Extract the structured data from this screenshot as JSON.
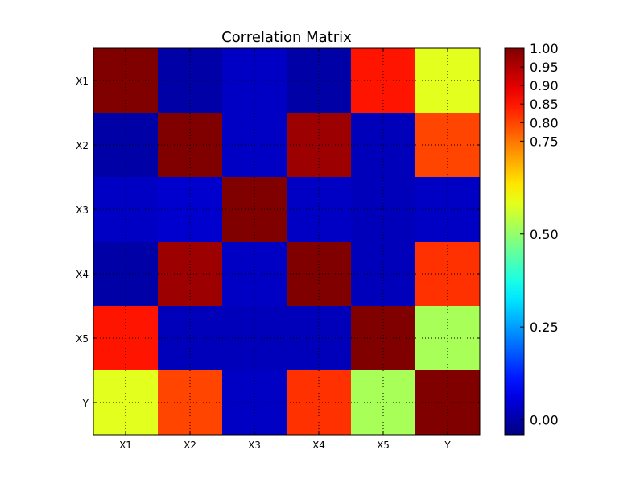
{
  "chart_data": {
    "type": "heatmap",
    "title": "Correlation Matrix",
    "xlabel": "",
    "ylabel": "",
    "x_categories": [
      "X1",
      "X2",
      "X3",
      "X4",
      "X5",
      "Y"
    ],
    "y_categories": [
      "X1",
      "X2",
      "X3",
      "X4",
      "X5",
      "Y"
    ],
    "values": [
      [
        1.0,
        0.0,
        0.03,
        0.0,
        0.85,
        0.58
      ],
      [
        0.0,
        1.0,
        0.03,
        0.97,
        0.02,
        0.8
      ],
      [
        0.03,
        0.04,
        1.0,
        0.03,
        0.02,
        0.03
      ],
      [
        0.0,
        0.97,
        0.03,
        1.0,
        0.02,
        0.82
      ],
      [
        0.85,
        0.02,
        0.02,
        0.02,
        1.0,
        0.52
      ],
      [
        0.58,
        0.8,
        0.03,
        0.82,
        0.52,
        1.0
      ]
    ],
    "colormap": "jet",
    "color_range": [
      -0.04,
      1.0
    ],
    "colorbar_ticks": [
      0.0,
      0.25,
      0.5,
      0.75,
      0.8,
      0.85,
      0.9,
      0.95,
      1.0
    ],
    "colorbar_tick_labels": [
      "0.00",
      "0.25",
      "0.50",
      "0.75",
      "0.80",
      "0.85",
      "0.90",
      "0.95",
      "1.00"
    ],
    "grid": true,
    "colorbar_placement": "right"
  }
}
